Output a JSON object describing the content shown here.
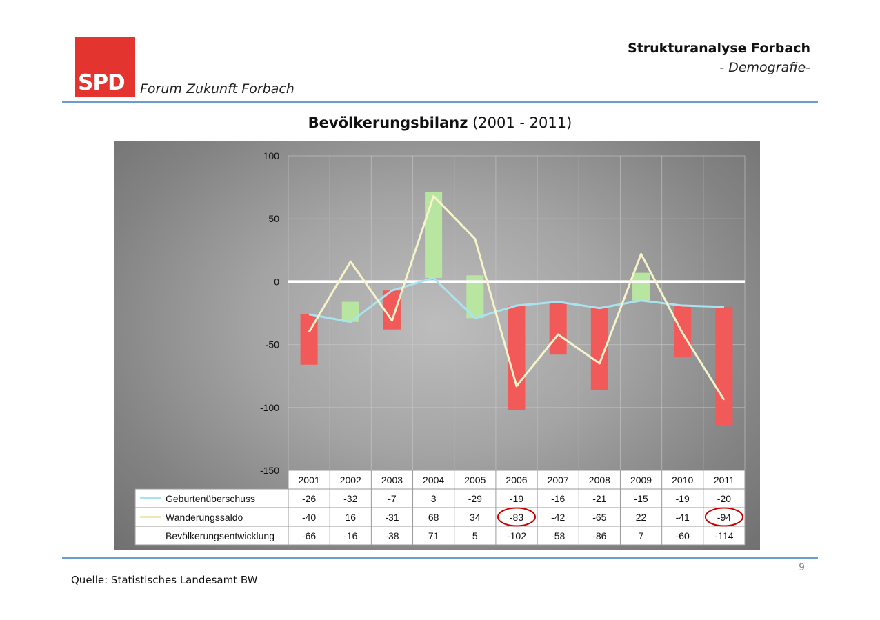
{
  "header": {
    "logo_text": "SPD",
    "forum": "Forum Zukunft Forbach",
    "title": "Strukturanalyse Forbach",
    "subtitle": "- Demografie-"
  },
  "slide": {
    "title_bold": "Bevölkerungsbilanz",
    "title_rest": " (2001 - 2011)",
    "source": "Quelle: Statistisches Landesamt BW",
    "page_number": "9"
  },
  "colors": {
    "bar_positive": "#b8e6a0",
    "bar_negative": "#f25a5a",
    "line_birth": "#a8e4f0",
    "line_migration": "#f7f4cc",
    "zero_line": "#ffffff",
    "highlight_circle": "#cc0000",
    "spd_red": "#e3342f",
    "rule_blue": "#6a9ccc"
  },
  "chart_data": {
    "type": "bar",
    "categories": [
      "2001",
      "2002",
      "2003",
      "2004",
      "2005",
      "2006",
      "2007",
      "2008",
      "2009",
      "2010",
      "2011"
    ],
    "ylim": [
      -150,
      100
    ],
    "yticks": [
      100,
      50,
      0,
      -50,
      -100,
      -150
    ],
    "grid": true,
    "series": [
      {
        "name": "Geburtenüberschuss",
        "kind": "line",
        "values": [
          -26,
          -32,
          -7,
          3,
          -29,
          -19,
          -16,
          -21,
          -15,
          -19,
          -20
        ]
      },
      {
        "name": "Wanderungssaldo",
        "kind": "line",
        "values": [
          -40,
          16,
          -31,
          68,
          34,
          -83,
          -42,
          -65,
          22,
          -41,
          -94
        ]
      },
      {
        "name": "Bevölkerungsentwicklung",
        "kind": "waterfall-bar",
        "values": [
          -66,
          -16,
          -38,
          71,
          5,
          -102,
          -58,
          -86,
          7,
          -60,
          -114
        ]
      }
    ],
    "highlighted": [
      {
        "series": "Wanderungssaldo",
        "category": "2006"
      },
      {
        "series": "Wanderungssaldo",
        "category": "2011"
      }
    ]
  }
}
